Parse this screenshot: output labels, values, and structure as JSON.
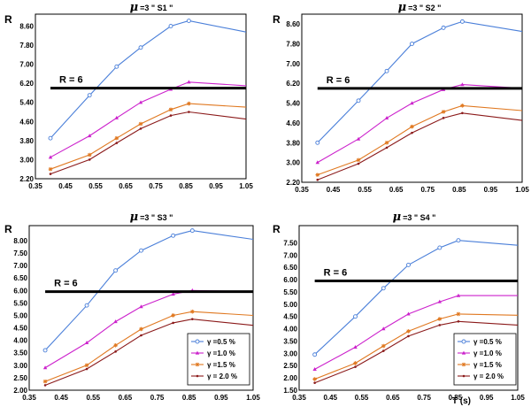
{
  "chart_data": [
    {
      "type": "line",
      "title": "μ =3  \" S1 \"",
      "title_mu": "μ",
      "title_rest": "=3  \" S1 \"",
      "ylabel": "R",
      "xlabel": "",
      "xlim": [
        0.35,
        1.05
      ],
      "ylim": [
        2.2,
        9.1
      ],
      "xticks": [
        "0.35",
        "0.45",
        "0.55",
        "0.65",
        "0.75",
        "0.85",
        "0.95",
        "1.05"
      ],
      "yticks": [
        "2.20",
        "3.00",
        "3.80",
        "4.60",
        "5.40",
        "6.20",
        "7.00",
        "7.80",
        "8.60"
      ],
      "reference": {
        "label": "R = 6",
        "y": 6.0,
        "x_start": 0.4,
        "x_end": 1.05
      },
      "legend": null,
      "series": [
        {
          "name": "γ =0.5 %",
          "color": "#4a7fd9",
          "marker": "circle",
          "x": [
            0.4,
            0.53,
            0.62,
            0.7,
            0.8,
            0.86,
            1.05
          ],
          "y": [
            3.9,
            5.7,
            6.9,
            7.7,
            8.6,
            8.82,
            8.35
          ]
        },
        {
          "name": "γ =1.0 %",
          "color": "#cc22cc",
          "marker": "triangle",
          "x": [
            0.4,
            0.53,
            0.62,
            0.7,
            0.8,
            0.86,
            1.05
          ],
          "y": [
            3.1,
            4.0,
            4.75,
            5.4,
            5.95,
            6.25,
            6.1
          ]
        },
        {
          "name": "γ =1.5 %",
          "color": "#e07820",
          "marker": "star",
          "x": [
            0.4,
            0.53,
            0.62,
            0.7,
            0.8,
            0.86,
            1.05
          ],
          "y": [
            2.6,
            3.2,
            3.9,
            4.5,
            5.1,
            5.35,
            5.2
          ]
        },
        {
          "name": "γ = 2.0 %",
          "color": "#8b1a1a",
          "marker": "dot",
          "x": [
            0.4,
            0.53,
            0.62,
            0.7,
            0.8,
            0.86,
            1.05
          ],
          "y": [
            2.4,
            3.0,
            3.7,
            4.3,
            4.85,
            5.0,
            4.7
          ]
        }
      ]
    },
    {
      "type": "line",
      "title": "μ =3  \" S2 \"",
      "title_mu": "μ",
      "title_rest": "=3  \" S2 \"",
      "ylabel": "R",
      "xlabel": "",
      "xlim": [
        0.35,
        1.05
      ],
      "ylim": [
        2.2,
        9.0
      ],
      "xticks": [
        "0.35",
        "0.45",
        "0.55",
        "0.65",
        "0.75",
        "0.85",
        "0.95",
        "1.05"
      ],
      "yticks": [
        "2.20",
        "3.00",
        "3.80",
        "4.60",
        "5.40",
        "6.20",
        "7.00",
        "7.80",
        "8.60"
      ],
      "reference": {
        "label": "R = 6",
        "y": 6.0,
        "x_start": 0.4,
        "x_end": 1.05
      },
      "legend": null,
      "series": [
        {
          "name": "γ =0.5 %",
          "color": "#4a7fd9",
          "marker": "circle",
          "x": [
            0.4,
            0.53,
            0.62,
            0.7,
            0.8,
            0.86,
            1.05
          ],
          "y": [
            3.8,
            5.5,
            6.7,
            7.8,
            8.45,
            8.7,
            8.3
          ]
        },
        {
          "name": "γ =1.0 %",
          "color": "#cc22cc",
          "marker": "triangle",
          "x": [
            0.4,
            0.53,
            0.62,
            0.7,
            0.8,
            0.86,
            1.05
          ],
          "y": [
            3.0,
            3.95,
            4.8,
            5.4,
            5.95,
            6.15,
            6.0
          ]
        },
        {
          "name": "γ =1.5 %",
          "color": "#e07820",
          "marker": "star",
          "x": [
            0.4,
            0.53,
            0.62,
            0.7,
            0.8,
            0.86,
            1.05
          ],
          "y": [
            2.5,
            3.1,
            3.8,
            4.45,
            5.05,
            5.3,
            5.1
          ]
        },
        {
          "name": "γ = 2.0 %",
          "color": "#8b1a1a",
          "marker": "dot",
          "x": [
            0.4,
            0.53,
            0.62,
            0.7,
            0.8,
            0.86,
            1.05
          ],
          "y": [
            2.3,
            2.95,
            3.6,
            4.2,
            4.8,
            5.0,
            4.7
          ]
        }
      ]
    },
    {
      "type": "line",
      "title": "μ =3  \" S3 \"",
      "title_mu": "μ",
      "title_rest": "=3  \" S3 \"",
      "ylabel": "R",
      "xlabel": "",
      "xlim": [
        0.35,
        1.05
      ],
      "ylim": [
        2.0,
        8.6
      ],
      "xticks": [
        "0.35",
        "0.45",
        "0.55",
        "0.65",
        "0.75",
        "0.85",
        "0.95",
        "1.05"
      ],
      "yticks": [
        "2.00",
        "2.50",
        "3.00",
        "3.50",
        "4.00",
        "4.50",
        "5.00",
        "5.50",
        "6.00",
        "6.50",
        "7.00",
        "7.50",
        "8.00"
      ],
      "reference": {
        "label": "R = 6",
        "y": 5.95,
        "x_start": 0.4,
        "x_end": 1.05
      },
      "legend": {
        "placement": "bottom-right",
        "entries": [
          "γ =0.5 %",
          "γ =1.0 %",
          "γ =1.5 %",
          "γ = 2.0 %"
        ]
      },
      "series": [
        {
          "name": "γ =0.5 %",
          "color": "#4a7fd9",
          "marker": "circle",
          "x": [
            0.4,
            0.53,
            0.62,
            0.7,
            0.8,
            0.86,
            1.05
          ],
          "y": [
            3.6,
            5.4,
            6.8,
            7.6,
            8.2,
            8.4,
            8.05
          ]
        },
        {
          "name": "γ =1.0 %",
          "color": "#cc22cc",
          "marker": "triangle",
          "x": [
            0.4,
            0.53,
            0.62,
            0.7,
            0.8,
            0.86,
            1.05
          ],
          "y": [
            2.9,
            3.9,
            4.75,
            5.35,
            5.85,
            6.0,
            5.95
          ]
        },
        {
          "name": "γ =1.5 %",
          "color": "#e07820",
          "marker": "star",
          "x": [
            0.4,
            0.53,
            0.62,
            0.7,
            0.8,
            0.86,
            1.05
          ],
          "y": [
            2.35,
            3.0,
            3.8,
            4.45,
            5.0,
            5.15,
            5.0
          ]
        },
        {
          "name": "γ = 2.0 %",
          "color": "#8b1a1a",
          "marker": "dot",
          "x": [
            0.4,
            0.53,
            0.62,
            0.7,
            0.8,
            0.86,
            1.05
          ],
          "y": [
            2.2,
            2.85,
            3.55,
            4.2,
            4.7,
            4.85,
            4.6
          ]
        }
      ]
    },
    {
      "type": "line",
      "title": "μ =3  \" S4 \"",
      "title_mu": "μ",
      "title_rest": "=3  \" S4 \"",
      "ylabel": "R",
      "xlabel": "T (s)",
      "xlim": [
        0.35,
        1.05
      ],
      "ylim": [
        1.5,
        8.2
      ],
      "xticks": [
        "0.35",
        "0.45",
        "0.55",
        "0.65",
        "0.75",
        "0.85",
        "0.95",
        "1.05"
      ],
      "yticks": [
        "1.50",
        "2.00",
        "2.50",
        "3.00",
        "3.50",
        "4.00",
        "4.50",
        "5.00",
        "5.50",
        "6.00",
        "6.50",
        "7.00",
        "7.50"
      ],
      "reference": {
        "label": "R = 6",
        "y": 5.95,
        "x_start": 0.4,
        "x_end": 1.05
      },
      "legend": {
        "placement": "bottom-right",
        "entries": [
          "γ =0.5 %",
          "γ =1.0 %",
          "γ =1.5 %",
          "γ = 2.0 %"
        ]
      },
      "series": [
        {
          "name": "γ =0.5 %",
          "color": "#4a7fd9",
          "marker": "circle",
          "x": [
            0.4,
            0.53,
            0.62,
            0.7,
            0.8,
            0.86,
            1.05
          ],
          "y": [
            2.95,
            4.5,
            5.65,
            6.6,
            7.3,
            7.6,
            7.4
          ]
        },
        {
          "name": "γ =1.0 %",
          "color": "#cc22cc",
          "marker": "triangle",
          "x": [
            0.4,
            0.53,
            0.62,
            0.7,
            0.8,
            0.86,
            1.05
          ],
          "y": [
            2.35,
            3.25,
            4.0,
            4.6,
            5.1,
            5.35,
            5.35
          ]
        },
        {
          "name": "γ =1.5 %",
          "color": "#e07820",
          "marker": "star",
          "x": [
            0.4,
            0.53,
            0.62,
            0.7,
            0.8,
            0.86,
            1.05
          ],
          "y": [
            1.95,
            2.6,
            3.3,
            3.9,
            4.4,
            4.6,
            4.55
          ]
        },
        {
          "name": "γ = 2.0 %",
          "color": "#8b1a1a",
          "marker": "dot",
          "x": [
            0.4,
            0.53,
            0.62,
            0.7,
            0.8,
            0.86,
            1.05
          ],
          "y": [
            1.8,
            2.45,
            3.1,
            3.7,
            4.15,
            4.3,
            4.15
          ]
        }
      ]
    }
  ]
}
